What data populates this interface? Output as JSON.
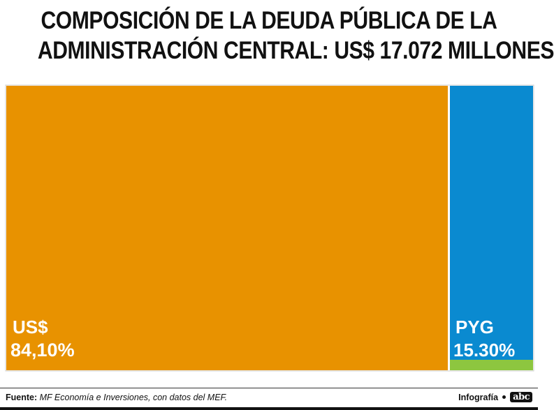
{
  "chart_data": {
    "type": "treemap",
    "title_lines": [
      "COMPOSICIÓN DE LA DEUDA PÚBLICA DE LA",
      "ADMINISTRACIÓN CENTRAL: US$ 17.072 MILLONES"
    ],
    "segments": [
      {
        "name": "US$",
        "value_label": "84,10%",
        "value": 84.1,
        "color": "#E89200"
      },
      {
        "name": "PYG",
        "value_label": "15.30%",
        "value": 15.3,
        "color": "#0A8AD0"
      },
      {
        "name": "",
        "value_label": "",
        "value": 0.6,
        "color": "#8DC63F"
      }
    ]
  },
  "footer": {
    "source_label": "Fuente:",
    "source_text": "MF Economía e Inversiones, con datos del MEF.",
    "credit_label": "Infografía",
    "logo_text": "abc"
  },
  "colors": {
    "frame": "#cfcfcf",
    "title": "#111111"
  }
}
